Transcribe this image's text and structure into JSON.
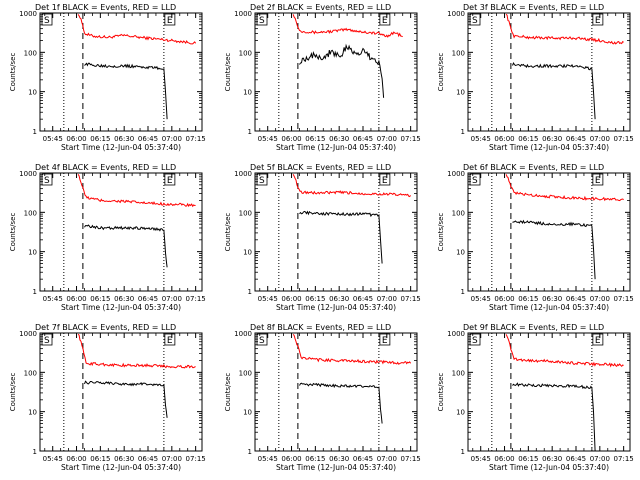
{
  "chart_data": [
    {
      "type": "line",
      "title": "Det 1f BLACK = Events, RED = LLD",
      "xlabel": "Start Time (12-Jun-04 05:37:40)",
      "ylabel": "Counts/sec",
      "yscale": "log",
      "ylim": [
        1,
        1000
      ],
      "xlim": [
        "05:37",
        "07:19"
      ],
      "x_ticks": [
        "05:45",
        "06:00",
        "06:15",
        "06:30",
        "06:45",
        "07:00",
        "07:15"
      ],
      "y_ticks": [
        "1",
        "10",
        "100",
        "1000"
      ],
      "markers": [
        "S",
        "E"
      ],
      "dotted_lines": [
        "05:52",
        "06:55"
      ],
      "dashed_line": "06:04",
      "series": [
        {
          "color": "#ff0000",
          "x": [
            "06:01",
            "06:04",
            "06:05",
            "06:10",
            "06:20",
            "06:30",
            "06:40",
            "06:50",
            "07:00",
            "07:10",
            "07:15"
          ],
          "y": [
            1000,
            500,
            300,
            260,
            240,
            270,
            240,
            220,
            200,
            180,
            170
          ]
        },
        {
          "color": "#000000",
          "x": [
            "06:05",
            "06:10",
            "06:20",
            "06:30",
            "06:40",
            "06:50",
            "06:55",
            "06:56",
            "06:57"
          ],
          "y": [
            50,
            48,
            45,
            45,
            43,
            40,
            38,
            10,
            2
          ]
        }
      ]
    },
    {
      "type": "line",
      "title": "Det 2f BLACK = Events, RED = LLD",
      "xlabel": "Start Time (12-Jun-04 05:37:40)",
      "ylabel": "Counts/sec",
      "yscale": "log",
      "ylim": [
        1,
        1000
      ],
      "xlim": [
        "05:37",
        "07:19"
      ],
      "x_ticks": [
        "05:45",
        "06:00",
        "06:15",
        "06:30",
        "06:45",
        "07:00",
        "07:15"
      ],
      "y_ticks": [
        "1",
        "10",
        "100",
        "1000"
      ],
      "markers": [
        "S",
        "E"
      ],
      "dotted_lines": [
        "05:52",
        "06:55"
      ],
      "dashed_line": "06:04",
      "series": [
        {
          "color": "#ff0000",
          "x": [
            "06:01",
            "06:05",
            "06:15",
            "06:25",
            "06:35",
            "06:45",
            "06:55",
            "07:00",
            "07:05",
            "07:10"
          ],
          "y": [
            1000,
            350,
            320,
            340,
            380,
            330,
            300,
            260,
            320,
            250
          ]
        },
        {
          "color": "#000000",
          "x": [
            "06:05",
            "06:10",
            "06:15",
            "06:20",
            "06:25",
            "06:30",
            "06:35",
            "06:40",
            "06:45",
            "06:50",
            "06:55",
            "06:57",
            "06:58"
          ],
          "y": [
            60,
            75,
            90,
            70,
            110,
            80,
            130,
            90,
            110,
            70,
            60,
            20,
            7
          ]
        }
      ]
    },
    {
      "type": "line",
      "title": "Det 3f BLACK = Events, RED = LLD",
      "xlabel": "Start Time (12-Jun-04 05:37:40)",
      "ylabel": "Counts/sec",
      "yscale": "log",
      "ylim": [
        1,
        1000
      ],
      "xlim": [
        "05:37",
        "07:19"
      ],
      "x_ticks": [
        "05:45",
        "06:00",
        "06:15",
        "06:30",
        "06:45",
        "07:00",
        "07:15"
      ],
      "y_ticks": [
        "1",
        "10",
        "100",
        "1000"
      ],
      "markers": [
        "S",
        "E"
      ],
      "dotted_lines": [
        "05:52",
        "06:55"
      ],
      "dashed_line": "06:04",
      "series": [
        {
          "color": "#ff0000",
          "x": [
            "06:01",
            "06:04",
            "06:06",
            "06:15",
            "06:30",
            "06:45",
            "07:00",
            "07:10",
            "07:15"
          ],
          "y": [
            1000,
            400,
            260,
            240,
            230,
            230,
            200,
            170,
            180
          ]
        },
        {
          "color": "#000000",
          "x": [
            "06:05",
            "06:15",
            "06:30",
            "06:45",
            "06:55",
            "06:56",
            "06:57"
          ],
          "y": [
            50,
            45,
            45,
            45,
            38,
            10,
            2
          ]
        }
      ]
    },
    {
      "type": "line",
      "title": "Det 4f BLACK = Events, RED = LLD",
      "xlabel": "Start Time (12-Jun-04 05:37:40)",
      "ylabel": "Counts/sec",
      "yscale": "log",
      "ylim": [
        1,
        1000
      ],
      "xlim": [
        "05:37",
        "07:19"
      ],
      "x_ticks": [
        "05:45",
        "06:00",
        "06:15",
        "06:30",
        "06:45",
        "07:00",
        "07:15"
      ],
      "y_ticks": [
        "1",
        "10",
        "100",
        "1000"
      ],
      "markers": [
        "S",
        "E"
      ],
      "dotted_lines": [
        "05:52",
        "06:55"
      ],
      "dashed_line": "06:04",
      "series": [
        {
          "color": "#ff0000",
          "x": [
            "06:01",
            "06:04",
            "06:06",
            "06:15",
            "06:30",
            "06:45",
            "07:00",
            "07:15"
          ],
          "y": [
            1000,
            400,
            240,
            200,
            190,
            170,
            160,
            150
          ]
        },
        {
          "color": "#000000",
          "x": [
            "06:05",
            "06:15",
            "06:30",
            "06:45",
            "06:55",
            "06:56",
            "06:57"
          ],
          "y": [
            45,
            40,
            40,
            40,
            35,
            10,
            4
          ]
        }
      ]
    },
    {
      "type": "line",
      "title": "Det 5f BLACK = Events, RED = LLD",
      "xlabel": "Start Time (12-Jun-04 05:37:40)",
      "ylabel": "Counts/sec",
      "yscale": "log",
      "ylim": [
        1,
        1000
      ],
      "xlim": [
        "05:37",
        "07:19"
      ],
      "x_ticks": [
        "05:45",
        "06:00",
        "06:15",
        "06:30",
        "06:45",
        "07:00",
        "07:15"
      ],
      "y_ticks": [
        "1",
        "10",
        "100",
        "1000"
      ],
      "markers": [
        "S",
        "E"
      ],
      "dotted_lines": [
        "05:52",
        "06:55"
      ],
      "dashed_line": "06:04",
      "series": [
        {
          "color": "#ff0000",
          "x": [
            "06:01",
            "06:04",
            "06:06",
            "06:15",
            "06:30",
            "06:45",
            "07:00",
            "07:15"
          ],
          "y": [
            1000,
            450,
            330,
            310,
            320,
            300,
            290,
            270
          ]
        },
        {
          "color": "#000000",
          "x": [
            "06:05",
            "06:15",
            "06:30",
            "06:45",
            "06:55",
            "06:56",
            "06:57"
          ],
          "y": [
            100,
            95,
            90,
            90,
            85,
            20,
            5
          ]
        }
      ]
    },
    {
      "type": "line",
      "title": "Det 6f BLACK = Events, RED = LLD",
      "xlabel": "Start Time (12-Jun-04 05:37:40)",
      "ylabel": "Counts/sec",
      "yscale": "log",
      "ylim": [
        1,
        1000
      ],
      "xlim": [
        "05:37",
        "07:19"
      ],
      "x_ticks": [
        "05:45",
        "06:00",
        "06:15",
        "06:30",
        "06:45",
        "07:00",
        "07:15"
      ],
      "y_ticks": [
        "1",
        "10",
        "100",
        "1000"
      ],
      "markers": [
        "S",
        "E"
      ],
      "dotted_lines": [
        "05:52",
        "06:55"
      ],
      "dashed_line": "06:04",
      "series": [
        {
          "color": "#ff0000",
          "x": [
            "06:01",
            "06:04",
            "06:06",
            "06:15",
            "06:30",
            "06:45",
            "07:00",
            "07:15"
          ],
          "y": [
            1000,
            450,
            310,
            280,
            250,
            230,
            220,
            210
          ]
        },
        {
          "color": "#000000",
          "x": [
            "06:05",
            "06:15",
            "06:30",
            "06:45",
            "06:55",
            "06:56",
            "06:57"
          ],
          "y": [
            60,
            55,
            50,
            50,
            45,
            12,
            2
          ]
        }
      ]
    },
    {
      "type": "line",
      "title": "Det 7f BLACK = Events, RED = LLD",
      "xlabel": "Start Time (12-Jun-04 05:37:40)",
      "ylabel": "Counts/sec",
      "yscale": "log",
      "ylim": [
        1,
        1000
      ],
      "xlim": [
        "05:37",
        "07:19"
      ],
      "x_ticks": [
        "05:45",
        "06:00",
        "06:15",
        "06:30",
        "06:45",
        "07:00",
        "07:15"
      ],
      "y_ticks": [
        "1",
        "10",
        "100",
        "1000"
      ],
      "markers": [
        "S",
        "E"
      ],
      "dotted_lines": [
        "05:52",
        "06:55"
      ],
      "dashed_line": "06:04",
      "series": [
        {
          "color": "#ff0000",
          "x": [
            "06:01",
            "06:04",
            "06:06",
            "06:15",
            "06:30",
            "06:45",
            "07:00",
            "07:15"
          ],
          "y": [
            1000,
            400,
            170,
            160,
            150,
            150,
            140,
            140
          ]
        },
        {
          "color": "#000000",
          "x": [
            "06:05",
            "06:15",
            "06:30",
            "06:45",
            "06:55",
            "06:56",
            "06:57"
          ],
          "y": [
            55,
            55,
            50,
            50,
            45,
            15,
            7
          ]
        }
      ]
    },
    {
      "type": "line",
      "title": "Det 8f BLACK = Events, RED = LLD",
      "xlabel": "Start Time (12-Jun-04 05:37:40)",
      "ylabel": "Counts/sec",
      "yscale": "log",
      "ylim": [
        1,
        1000
      ],
      "xlim": [
        "05:37",
        "07:19"
      ],
      "x_ticks": [
        "05:45",
        "06:00",
        "06:15",
        "06:30",
        "06:45",
        "07:00",
        "07:15"
      ],
      "y_ticks": [
        "1",
        "10",
        "100",
        "1000"
      ],
      "markers": [
        "S",
        "E"
      ],
      "dotted_lines": [
        "05:52",
        "06:55"
      ],
      "dashed_line": "06:04",
      "series": [
        {
          "color": "#ff0000",
          "x": [
            "06:01",
            "06:04",
            "06:06",
            "06:15",
            "06:30",
            "06:45",
            "07:00",
            "07:15"
          ],
          "y": [
            1000,
            450,
            240,
            210,
            200,
            190,
            180,
            170
          ]
        },
        {
          "color": "#000000",
          "x": [
            "06:05",
            "06:15",
            "06:30",
            "06:45",
            "06:55",
            "06:56",
            "06:57"
          ],
          "y": [
            50,
            48,
            45,
            45,
            42,
            12,
            5
          ]
        }
      ]
    },
    {
      "type": "line",
      "title": "Det 9f BLACK = Events, RED = LLD",
      "xlabel": "Start Time (12-Jun-04 05:37:40)",
      "ylabel": "Counts/sec",
      "yscale": "log",
      "ylim": [
        1,
        1000
      ],
      "xlim": [
        "05:37",
        "07:19"
      ],
      "x_ticks": [
        "05:45",
        "06:00",
        "06:15",
        "06:30",
        "06:45",
        "07:00",
        "07:15"
      ],
      "y_ticks": [
        "1",
        "10",
        "100",
        "1000"
      ],
      "markers": [
        "S",
        "E"
      ],
      "dotted_lines": [
        "05:52",
        "06:55"
      ],
      "dashed_line": "06:04",
      "series": [
        {
          "color": "#ff0000",
          "x": [
            "06:01",
            "06:04",
            "06:06",
            "06:15",
            "06:30",
            "06:45",
            "07:00",
            "07:15"
          ],
          "y": [
            1000,
            400,
            220,
            200,
            190,
            170,
            160,
            150
          ]
        },
        {
          "color": "#000000",
          "x": [
            "06:05",
            "06:15",
            "06:30",
            "06:45",
            "06:55",
            "06:56",
            "06:57"
          ],
          "y": [
            50,
            48,
            45,
            45,
            40,
            10,
            1
          ]
        }
      ]
    }
  ]
}
